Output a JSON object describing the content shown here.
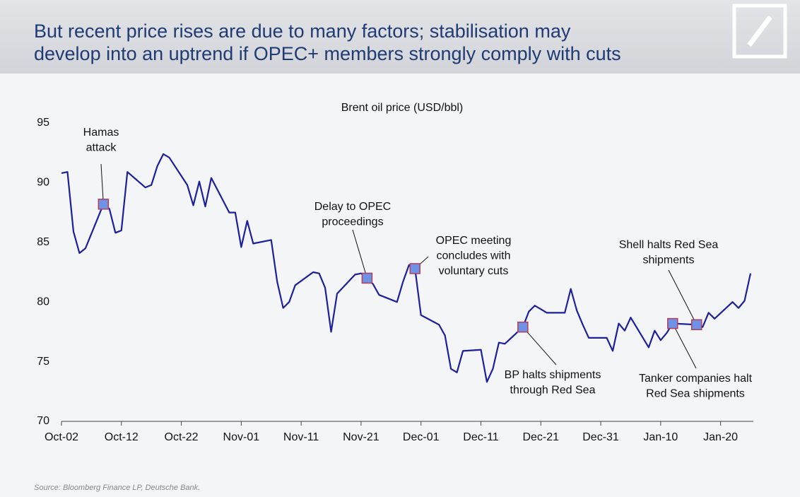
{
  "header": {
    "title_lines": [
      "But recent price rises are due to many factors; stabilisation may",
      "develop into an uptrend if OPEC+ members strongly comply with cuts"
    ]
  },
  "chart_data": {
    "type": "line",
    "title": "Brent oil price (USD/bbl)",
    "x": [
      0,
      1,
      2,
      3,
      4,
      7,
      8,
      9,
      10,
      11,
      14,
      15,
      16,
      17,
      18,
      21,
      22,
      23,
      24,
      25,
      28,
      29,
      30,
      31,
      32,
      35,
      36,
      37,
      38,
      39,
      42,
      43,
      44,
      45,
      46,
      49,
      50,
      51,
      52,
      53,
      56,
      57,
      58,
      59,
      60,
      63,
      64,
      65,
      66,
      67,
      70,
      71,
      72,
      73,
      74,
      77,
      78,
      79,
      80,
      81,
      84,
      85,
      86,
      87,
      88,
      91,
      92,
      93,
      94,
      95,
      98,
      99,
      100,
      101,
      102,
      106,
      107,
      108,
      109,
      112,
      113,
      114,
      115
    ],
    "series": [
      {
        "name": "Brent oil price",
        "color": "#1c1f9e",
        "values": [
          90.8,
          90.9,
          85.9,
          84.1,
          84.5,
          88.2,
          87.8,
          85.8,
          86.0,
          90.9,
          89.6,
          89.8,
          91.4,
          92.4,
          92.1,
          89.8,
          88.1,
          90.1,
          88.0,
          90.4,
          87.5,
          87.5,
          84.6,
          86.8,
          84.9,
          85.2,
          81.7,
          79.5,
          80.0,
          81.4,
          82.5,
          82.4,
          81.2,
          77.5,
          80.7,
          82.3,
          82.4,
          82.0,
          81.5,
          80.6,
          80.0,
          81.7,
          83.1,
          82.8,
          78.9,
          78.1,
          77.2,
          74.4,
          74.1,
          75.9,
          76.0,
          73.3,
          74.4,
          76.6,
          76.5,
          77.9,
          79.2,
          79.7,
          79.4,
          79.1,
          79.1,
          81.1,
          79.3,
          78.1,
          77.0,
          77.0,
          75.9,
          78.2,
          77.6,
          78.7,
          76.2,
          77.6,
          76.8,
          77.4,
          78.2,
          78.1,
          77.9,
          79.1,
          78.6,
          80.0,
          79.5,
          80.1,
          82.4
        ]
      }
    ],
    "xlim": [
      0,
      115
    ],
    "xticks": [
      {
        "value": 0,
        "label": "Oct-02"
      },
      {
        "value": 10,
        "label": "Oct-12"
      },
      {
        "value": 20,
        "label": "Oct-22"
      },
      {
        "value": 30,
        "label": "Nov-01"
      },
      {
        "value": 40,
        "label": "Nov-11"
      },
      {
        "value": 50,
        "label": "Nov-21"
      },
      {
        "value": 60,
        "label": "Dec-01"
      },
      {
        "value": 70,
        "label": "Dec-11"
      },
      {
        "value": 80,
        "label": "Dec-21"
      },
      {
        "value": 90,
        "label": "Dec-31"
      },
      {
        "value": 100,
        "label": "Jan-10"
      },
      {
        "value": 110,
        "label": "Jan-20"
      }
    ],
    "ylim": [
      70,
      95
    ],
    "yticks": [
      70,
      75,
      80,
      85,
      90,
      95
    ],
    "grid": false,
    "annotations": [
      {
        "x": 7,
        "y": 88.2,
        "text": [
          "Hamas",
          "attack"
        ]
      },
      {
        "x": 51,
        "y": 82.0,
        "text": [
          "Delay to OPEC",
          "proceedings"
        ]
      },
      {
        "x": 59,
        "y": 82.8,
        "text": [
          "OPEC meeting",
          "concludes with",
          "voluntary cuts"
        ]
      },
      {
        "x": 77,
        "y": 77.9,
        "text": [
          "BP halts shipments",
          "through Red Sea"
        ]
      },
      {
        "x": 102,
        "y": 78.2,
        "text": [
          "Tanker companies halt",
          "Red Sea shipments"
        ]
      },
      {
        "x": 106,
        "y": 78.1,
        "text": [
          "Shell halts Red Sea",
          "shipments"
        ]
      }
    ],
    "source": "Source: Bloomberg Finance LP, Deutsche Bank."
  }
}
